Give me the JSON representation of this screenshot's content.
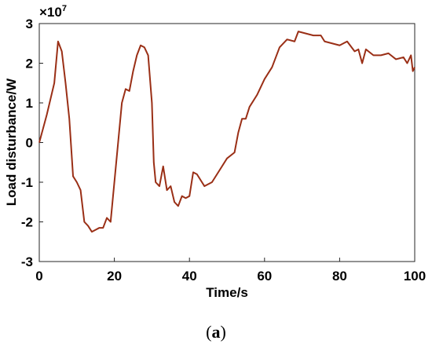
{
  "chart_data": {
    "type": "line",
    "x_label": "Time/s",
    "y_label": "Load disturbance/W",
    "y_multiplier": "×10",
    "y_exponent": "7",
    "caption_open": "(",
    "caption_letter": "a",
    "caption_close": ")",
    "xlim": [
      0,
      100
    ],
    "xticks": [
      0,
      20,
      40,
      60,
      80,
      100
    ],
    "ylim": [
      -3,
      3
    ],
    "yticks": [
      -3,
      -2,
      -1,
      0,
      1,
      2,
      3
    ],
    "grid": false,
    "series": [
      {
        "color": "#9a2f16",
        "x": [
          0,
          2,
          4,
          5,
          6,
          7,
          8,
          9,
          10,
          11,
          12,
          13,
          14,
          15,
          16,
          17,
          18,
          19,
          20,
          21,
          22,
          23,
          24,
          25,
          26,
          27,
          28,
          29,
          30,
          30.5,
          31,
          32,
          33,
          34,
          35,
          36,
          37,
          38,
          39,
          40,
          41,
          42,
          43,
          44,
          46,
          48,
          50,
          52,
          53,
          54,
          55,
          56,
          58,
          60,
          62,
          64,
          66,
          68,
          69,
          71,
          73,
          75,
          76,
          78,
          80,
          82,
          84,
          85,
          86,
          87,
          89,
          91,
          93,
          95,
          97,
          98,
          99,
          99.5,
          100
        ],
        "values": [
          0,
          0.7,
          1.5,
          2.55,
          2.3,
          1.5,
          0.6,
          -0.85,
          -1.0,
          -1.2,
          -2.0,
          -2.1,
          -2.25,
          -2.2,
          -2.15,
          -2.15,
          -1.9,
          -2.0,
          -1.0,
          0,
          1.0,
          1.35,
          1.3,
          1.8,
          2.2,
          2.45,
          2.4,
          2.2,
          1.0,
          -0.5,
          -1.0,
          -1.1,
          -0.6,
          -1.2,
          -1.1,
          -1.5,
          -1.6,
          -1.35,
          -1.4,
          -1.35,
          -0.75,
          -0.8,
          -0.95,
          -1.1,
          -1.0,
          -0.7,
          -0.4,
          -0.25,
          0.25,
          0.6,
          0.6,
          0.9,
          1.2,
          1.6,
          1.9,
          2.4,
          2.6,
          2.55,
          2.8,
          2.75,
          2.7,
          2.7,
          2.55,
          2.5,
          2.45,
          2.55,
          2.3,
          2.35,
          2.0,
          2.35,
          2.2,
          2.2,
          2.25,
          2.1,
          2.15,
          2.0,
          2.2,
          1.8,
          1.9
        ]
      }
    ]
  }
}
